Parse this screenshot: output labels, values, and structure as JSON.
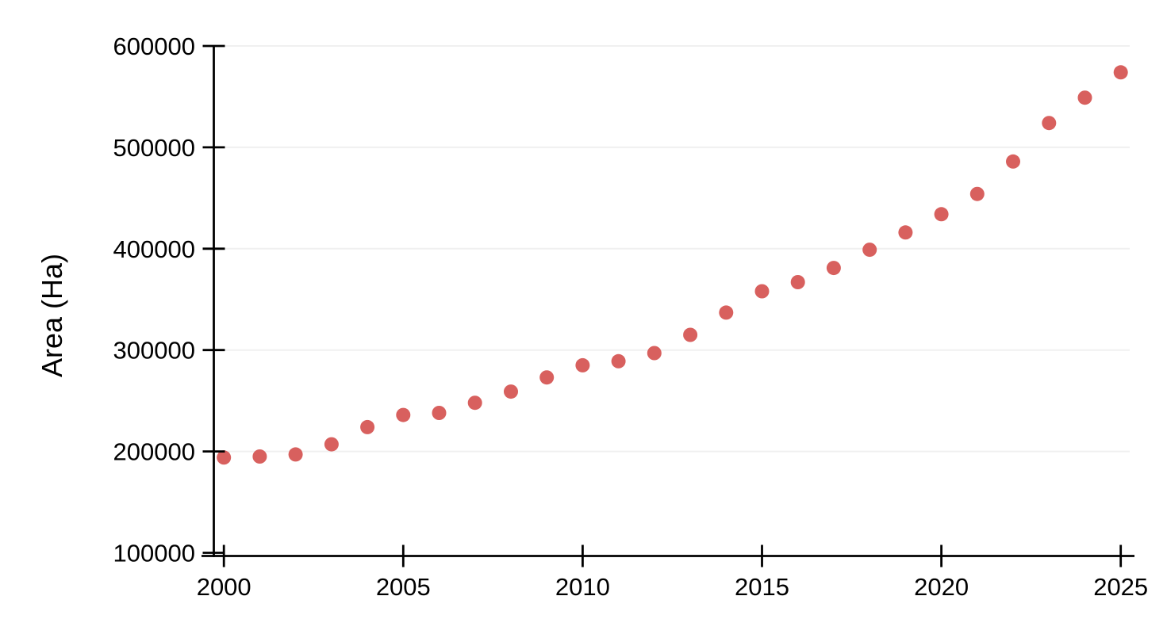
{
  "chart_data": {
    "type": "scatter",
    "title": "",
    "xlabel": "",
    "ylabel": "Area (Ha)",
    "x": [
      2000,
      2001,
      2002,
      2003,
      2004,
      2005,
      2006,
      2007,
      2008,
      2009,
      2010,
      2011,
      2012,
      2013,
      2014,
      2015,
      2016,
      2017,
      2018,
      2019,
      2020,
      2021,
      2022,
      2023,
      2024,
      2025
    ],
    "values": [
      194000,
      195000,
      197000,
      207000,
      224000,
      236000,
      238000,
      248000,
      259000,
      273000,
      285000,
      289000,
      297000,
      315000,
      337000,
      358000,
      367000,
      381000,
      399000,
      416000,
      434000,
      454000,
      486000,
      524000,
      549000,
      574000
    ],
    "series_name": "Area",
    "x_ticks": [
      2000,
      2005,
      2010,
      2015,
      2020,
      2025
    ],
    "y_ticks": [
      100000,
      200000,
      300000,
      400000,
      500000,
      600000
    ],
    "xlim": [
      2000,
      2025
    ],
    "ylim": [
      100000,
      600000
    ],
    "grid": "horizontal",
    "legend": "none",
    "marker": "circle",
    "colors": {
      "point": "#d8605e",
      "grid": "#f0f0f0",
      "axis": "#000000",
      "text": "#000000",
      "background": "#ffffff"
    }
  }
}
